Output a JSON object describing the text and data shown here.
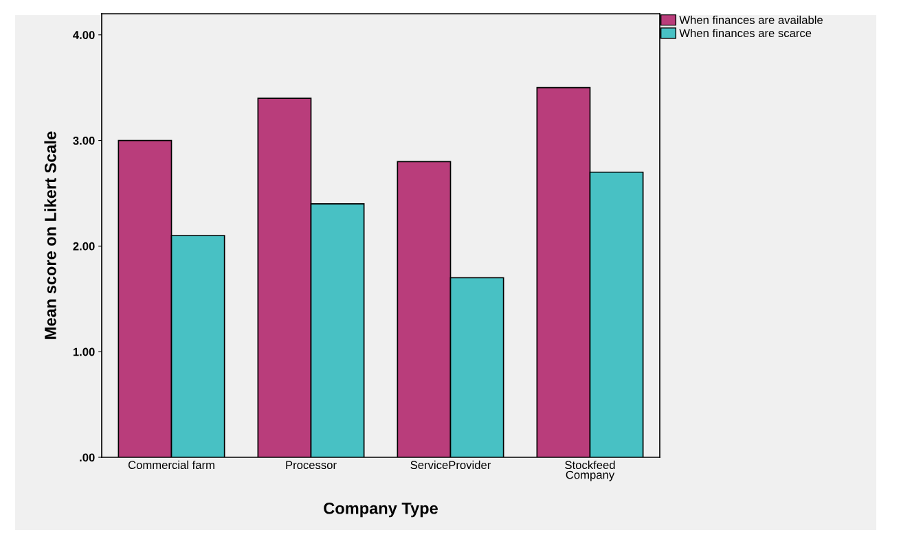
{
  "chart_data": {
    "type": "bar",
    "xlabel": "Company Type",
    "ylabel": "Mean score on Likert Scale",
    "categories": [
      "Commercial farm",
      "Processor",
      "ServiceProvider",
      "Stockfeed\nCompany"
    ],
    "series": [
      {
        "name": "When finances are available",
        "color": "#b93d7b",
        "values": [
          3.0,
          3.4,
          2.8,
          3.5
        ]
      },
      {
        "name": "When finances are scarce",
        "color": "#48c1c4",
        "values": [
          2.1,
          2.4,
          1.7,
          2.7
        ]
      }
    ],
    "ylim": [
      0,
      4.2
    ],
    "yticks": [
      {
        "value": 0,
        "label": ".00"
      },
      {
        "value": 1,
        "label": "1.00"
      },
      {
        "value": 2,
        "label": "2.00"
      },
      {
        "value": 3,
        "label": "3.00"
      },
      {
        "value": 4,
        "label": "4.00"
      }
    ],
    "grid": false,
    "legend": "top right"
  }
}
